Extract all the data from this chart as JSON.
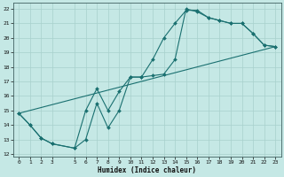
{
  "xlabel": "Humidex (Indice chaleur)",
  "ylabel": "",
  "bg_color": "#c5e8e5",
  "line_color": "#1a7070",
  "grid_color": "#a8d0cc",
  "xlim": [
    -0.5,
    23.5
  ],
  "ylim": [
    11.8,
    22.4
  ],
  "xticks": [
    0,
    1,
    2,
    3,
    5,
    6,
    7,
    8,
    9,
    10,
    11,
    12,
    13,
    14,
    15,
    16,
    17,
    18,
    19,
    20,
    21,
    22,
    23
  ],
  "yticks": [
    12,
    13,
    14,
    15,
    16,
    17,
    18,
    19,
    20,
    21,
    22
  ],
  "line1_x": [
    0,
    1,
    2,
    3,
    5,
    6,
    7,
    8,
    9,
    10,
    11,
    12,
    13,
    14,
    15,
    16,
    17,
    18,
    19,
    20,
    21,
    22,
    23
  ],
  "line1_y": [
    14.8,
    14.0,
    13.1,
    12.7,
    12.4,
    15.0,
    16.5,
    15.0,
    16.3,
    17.3,
    17.3,
    18.5,
    20.0,
    21.0,
    21.9,
    21.9,
    21.4,
    21.2,
    21.0,
    21.0,
    20.3,
    19.5,
    19.4
  ],
  "line2_x": [
    0,
    1,
    2,
    3,
    5,
    6,
    7,
    8,
    9,
    10,
    11,
    12,
    13,
    14,
    15,
    16,
    17,
    18,
    19,
    20,
    21,
    22,
    23
  ],
  "line2_y": [
    14.8,
    14.0,
    13.1,
    12.7,
    12.4,
    13.0,
    15.5,
    13.8,
    15.0,
    17.3,
    17.3,
    17.4,
    17.5,
    18.5,
    22.0,
    21.8,
    21.4,
    21.2,
    21.0,
    21.0,
    20.3,
    19.5,
    19.4
  ],
  "line3_x": [
    0,
    23
  ],
  "line3_y": [
    14.8,
    19.4
  ]
}
